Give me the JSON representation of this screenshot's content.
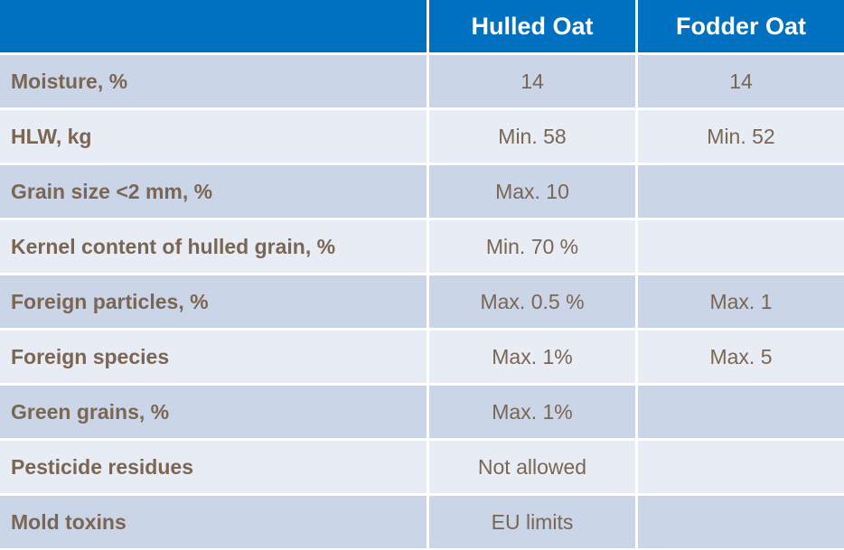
{
  "table": {
    "headers": [
      "",
      "Hulled Oat",
      "Fodder Oat"
    ],
    "rows": [
      {
        "label": "Moisture, %",
        "hulled": "14",
        "fodder": "14"
      },
      {
        "label": "HLW, kg",
        "hulled": "Min. 58",
        "fodder": "Min. 52"
      },
      {
        "label": "Grain size <2 mm, %",
        "hulled": "Max. 10",
        "fodder": ""
      },
      {
        "label": "Kernel content of hulled grain, %",
        "hulled": "Min. 70 %",
        "fodder": ""
      },
      {
        "label": "Foreign particles, %",
        "hulled": "Max. 0.5 %",
        "fodder": "Max. 1"
      },
      {
        "label": "Foreign species",
        "hulled": "Max. 1%",
        "fodder": "Max. 5"
      },
      {
        "label": "Green grains, %",
        "hulled": "Max. 1%",
        "fodder": ""
      },
      {
        "label": "Pesticide residues",
        "hulled": "Not allowed",
        "fodder": ""
      },
      {
        "label": "Mold toxins",
        "hulled": "EU limits",
        "fodder": ""
      }
    ]
  },
  "colors": {
    "header": "#0070c0",
    "row_dark": "#cad5e7",
    "row_light": "#e8ecf5",
    "text": "#7a6653"
  }
}
